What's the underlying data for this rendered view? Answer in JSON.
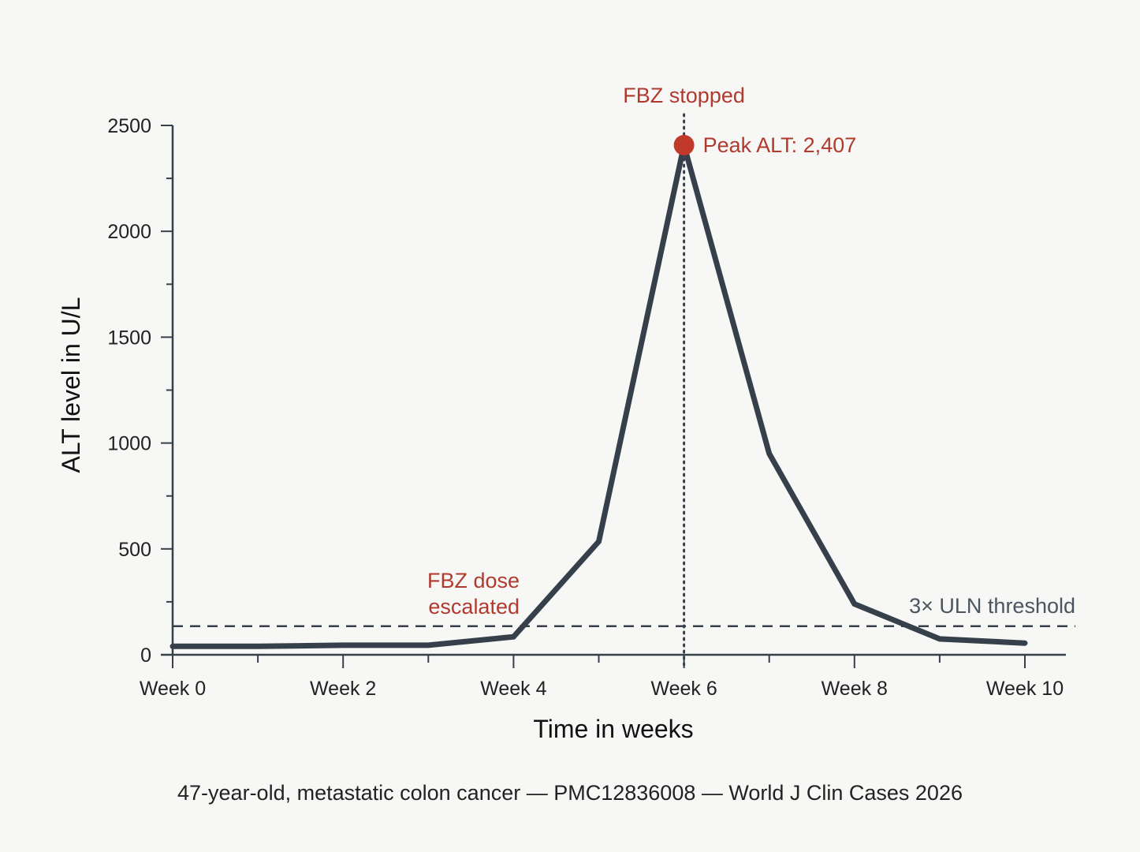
{
  "chart_data": {
    "type": "line",
    "title": "",
    "xlabel": "Time in weeks",
    "ylabel": "ALT level in U/L",
    "x_range": [
      0,
      10
    ],
    "ylim": [
      0,
      2500
    ],
    "y_ticks": [
      0,
      500,
      1000,
      1500,
      2000,
      2500
    ],
    "y_tick_labels": [
      "0",
      "500",
      "1000",
      "1500",
      "2000",
      "2500"
    ],
    "x_ticks": [
      0,
      2,
      4,
      6,
      8,
      10
    ],
    "x_tick_labels": [
      "Week 0",
      "Week 2",
      "Week 4",
      "Week 6",
      "Week 8",
      "Week 10"
    ],
    "x_minor_ticks": [
      1,
      3,
      5,
      7,
      9
    ],
    "y_minor_ticks": [
      250,
      750,
      1250,
      1750,
      2250
    ],
    "grid": false,
    "series": [
      {
        "name": "",
        "x": [
          0,
          1,
          2,
          3,
          4,
          5,
          6,
          7,
          8,
          9,
          10
        ],
        "y": [
          40,
          40,
          45,
          45,
          85,
          535,
          2407,
          950,
          240,
          75,
          55
        ],
        "color": "#36404a"
      }
    ],
    "reference_lines": [
      {
        "label": "3× ULN threshold",
        "orientation": "horizontal",
        "value": 135,
        "style": "dashed",
        "color": "#36404a"
      },
      {
        "label": "FBZ stopped",
        "orientation": "vertical",
        "value": 6,
        "style": "dotted",
        "color": "#36404a"
      }
    ],
    "annotations": [
      {
        "id": "peak",
        "text": "Peak ALT: 2,407",
        "x": 6,
        "y": 2407,
        "color": "#b03a2e"
      },
      {
        "id": "dose_line1",
        "text": "FBZ dose",
        "x": 3.5,
        "color": "#b03a2e"
      },
      {
        "id": "dose_line2",
        "text": "escalated",
        "x": 3.5,
        "color": "#b03a2e"
      }
    ],
    "peak_marker_color": "#c0392b"
  },
  "footer": "47-year-old, metastatic colon cancer — PMC12836008 — World J Clin Cases 2026"
}
